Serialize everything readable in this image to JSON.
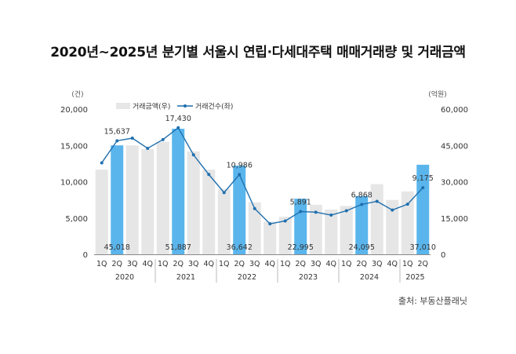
{
  "title": "2020년~2025년 분기별 서울시 연립·다세대주택 매매거래량 및 거래금액",
  "source": "출처: 부동산플래닛",
  "colors": {
    "bar_normal": "#e6e6e6",
    "bar_highlight": "#5ab5ec",
    "line": "#1f6fae",
    "axis": "#888888",
    "text": "#333333"
  },
  "chart_data": {
    "type": "bar",
    "title": "2020년~2025년 분기별 서울시 연립·다세대주택 매매거래량 및 거래금액",
    "left_axis_unit": "(건)",
    "right_axis_unit": "(억원)",
    "left_ticks": [
      "20,000",
      "15,000",
      "10,000",
      "5,000",
      "0"
    ],
    "right_ticks": [
      "60,000",
      "45,000",
      "30,000",
      "15,000",
      "0"
    ],
    "ylim_left": [
      0,
      20000
    ],
    "ylim_right": [
      0,
      60000
    ],
    "quarters": [
      "1Q",
      "2Q",
      "3Q",
      "4Q",
      "1Q",
      "2Q",
      "3Q",
      "4Q",
      "1Q",
      "2Q",
      "3Q",
      "4Q",
      "1Q",
      "2Q",
      "3Q",
      "4Q",
      "1Q",
      "2Q",
      "3Q",
      "4Q",
      "1Q",
      "2Q"
    ],
    "years": [
      {
        "label": "2020",
        "start": 0,
        "count": 4
      },
      {
        "label": "2021",
        "start": 4,
        "count": 4
      },
      {
        "label": "2022",
        "start": 8,
        "count": 4
      },
      {
        "label": "2023",
        "start": 12,
        "count": 4
      },
      {
        "label": "2024",
        "start": 16,
        "count": 4
      },
      {
        "label": "2025",
        "start": 20,
        "count": 2
      }
    ],
    "series": [
      {
        "name": "거래금액(우)",
        "type": "bar",
        "axis": "right",
        "values": [
          35000,
          45018,
          45000,
          43500,
          46500,
          51887,
          42500,
          35000,
          27000,
          36642,
          21500,
          13500,
          15500,
          22995,
          20500,
          18500,
          20000,
          24095,
          29000,
          22500,
          26000,
          37010
        ],
        "highlight_indices": [
          1,
          5,
          9,
          13,
          17,
          21
        ],
        "labels": [
          {
            "index": 1,
            "text": "45,018"
          },
          {
            "index": 5,
            "text": "51,887"
          },
          {
            "index": 9,
            "text": "36,642"
          },
          {
            "index": 13,
            "text": "22,995"
          },
          {
            "index": 17,
            "text": "24,095"
          },
          {
            "index": 21,
            "text": "37,010"
          }
        ]
      },
      {
        "name": "거래건수(좌)",
        "type": "line",
        "axis": "left",
        "values": [
          12600,
          15637,
          16000,
          14600,
          15800,
          17430,
          13700,
          11000,
          8500,
          10986,
          6300,
          4200,
          4600,
          5891,
          5800,
          5400,
          6000,
          6868,
          7300,
          6100,
          6900,
          9175
        ],
        "labels": [
          {
            "index": 1,
            "text": "15,637"
          },
          {
            "index": 5,
            "text": "17,430"
          },
          {
            "index": 9,
            "text": "10,986"
          },
          {
            "index": 13,
            "text": "5,891"
          },
          {
            "index": 17,
            "text": "6,868"
          },
          {
            "index": 21,
            "text": "9,175"
          }
        ]
      }
    ],
    "legend_position": "top-left",
    "grid": false
  }
}
